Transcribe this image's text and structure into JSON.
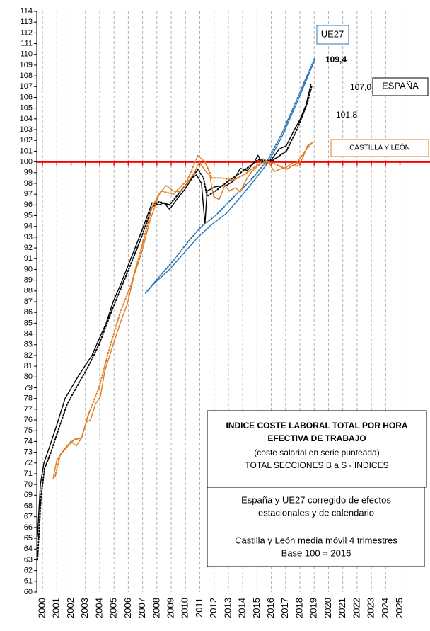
{
  "chart_data": {
    "type": "line",
    "xlim": [
      1999.6,
      2027.1
    ],
    "xticks": [
      2000,
      2001,
      2002,
      2003,
      2004,
      2005,
      2006,
      2007,
      2008,
      2009,
      2010,
      2011,
      2012,
      2013,
      2014,
      2015,
      2016,
      2017,
      2018,
      2019,
      2020,
      2021,
      2022,
      2023,
      2024,
      2025
    ],
    "ylim": [
      60,
      114
    ],
    "yticks": [
      60,
      61,
      62,
      63,
      64,
      65,
      66,
      67,
      68,
      69,
      70,
      71,
      72,
      73,
      74,
      75,
      76,
      77,
      78,
      79,
      80,
      81,
      82,
      83,
      84,
      85,
      86,
      87,
      88,
      89,
      90,
      91,
      92,
      93,
      94,
      95,
      96,
      97,
      98,
      99,
      100,
      101,
      102,
      103,
      104,
      105,
      106,
      107,
      108,
      109,
      110,
      111,
      112,
      113,
      114
    ],
    "grid": true,
    "reference_line": {
      "value": 100,
      "color": "#ff0000"
    },
    "series": [
      {
        "color": "#000000",
        "style": "solid",
        "x": [
          1999.65,
          1999.85,
          2000.1,
          2000.49,
          2000.99,
          2001.58,
          2002.47,
          2002.96,
          2003.46,
          2003.95,
          2004.45,
          2004.94,
          2005.43,
          2006.18,
          2006.92,
          2007.66,
          2008.15,
          2008.5,
          2008.89,
          2009.39,
          2009.98,
          2010.47,
          2010.77,
          2011.12,
          2011.36,
          2011.51,
          2012.1,
          2012.85,
          2013.34,
          2013.83,
          2014.33,
          2014.72,
          2015.07,
          2015.32,
          2015.71,
          2016.06,
          2016.55,
          2017.05,
          2017.54,
          2018.03,
          2018.43,
          2018.77
        ],
        "values": [
          65.2,
          70,
          72,
          73.5,
          75.5,
          78,
          80,
          81,
          82,
          83.5,
          85,
          87,
          88.5,
          91,
          93.5,
          96.2,
          96,
          96.2,
          95.6,
          96.5,
          97.5,
          98.5,
          98.8,
          98,
          94.2,
          97.3,
          97.7,
          97.8,
          98.2,
          99.4,
          99.2,
          99.8,
          100.6,
          100,
          99.9,
          100.3,
          101.2,
          101.5,
          102.8,
          104,
          105.3,
          107.2
        ]
      },
      {
        "color": "#000000",
        "style": "dotted",
        "x": [
          1999.65,
          1999.9,
          2000.15,
          2000.59,
          2001.09,
          2001.73,
          2002.57,
          2003.21,
          2003.95,
          2004.94,
          2006.18,
          2006.92,
          2007.66,
          2008.15,
          2008.89,
          2009.98,
          2010.87,
          2011.26,
          2011.51,
          2012.1,
          2013.09,
          2014.08,
          2015.07,
          2016.06,
          2017.05,
          2017.79,
          2018.53,
          2018.82
        ],
        "values": [
          63,
          69,
          71.5,
          73,
          75,
          77.5,
          79.5,
          81,
          83,
          86.5,
          90.5,
          93,
          95.8,
          96.3,
          96,
          97.8,
          99.3,
          98.5,
          96.8,
          97.3,
          98.3,
          99.2,
          100.2,
          100.1,
          101,
          103,
          105.5,
          107
        ]
      },
      {
        "color": "#2e75b6",
        "style": "solid",
        "x": [
          2007.31,
          2007.9,
          2008.89,
          2009.88,
          2010.87,
          2011.86,
          2012.85,
          2013.83,
          2014.82,
          2015.81,
          2016.8,
          2017.79,
          2019.02
        ],
        "values": [
          88,
          88.8,
          90,
          91.5,
          93,
          94.2,
          95.2,
          96.7,
          98.3,
          100,
          102.5,
          105.5,
          109.4
        ]
      },
      {
        "color": "#2e75b6",
        "style": "dotted",
        "x": [
          2007.21,
          2008.15,
          2009.14,
          2010.13,
          2011.12,
          2012.1,
          2013.34,
          2014.57,
          2015.81,
          2016.8,
          2017.79,
          2019.02
        ],
        "values": [
          87.8,
          89.3,
          90.8,
          92.5,
          94,
          95,
          96.7,
          98.3,
          100.3,
          102.8,
          105.8,
          109.6
        ]
      },
      {
        "color": "#e07b22",
        "style": "solid",
        "x": [
          2000.74,
          2000.99,
          2001.48,
          2001.98,
          2002.37,
          2002.72,
          2003.06,
          2003.36,
          2003.71,
          2004.05,
          2004.35,
          2004.94,
          2005.43,
          2005.93,
          2006.42,
          2006.92,
          2007.51,
          2008.15,
          2008.65,
          2009.14,
          2009.63,
          2010.13,
          2010.62,
          2010.97,
          2011.36,
          2011.71,
          2011.96,
          2012.35,
          2012.75,
          2013.09,
          2013.49,
          2013.83,
          2014.23,
          2014.57,
          2014.97,
          2015.42,
          2015.81,
          2016.21,
          2016.55,
          2017.05,
          2017.44,
          2017.79,
          2018.18,
          2018.53,
          2018.87
        ],
        "values": [
          70.5,
          72.2,
          73.2,
          74,
          73.6,
          74.3,
          75.8,
          76,
          77.5,
          78.2,
          80.5,
          83,
          85,
          86.8,
          89.5,
          91.5,
          94.5,
          97,
          97.8,
          97.3,
          97.2,
          98,
          99,
          100,
          99.2,
          98.7,
          96.8,
          96.5,
          97.8,
          97.3,
          97.6,
          97.2,
          98.3,
          99,
          99.5,
          100.3,
          100,
          99.1,
          99.3,
          99.5,
          99.9,
          99.6,
          100.3,
          101.5,
          101.8
        ]
      },
      {
        "color": "#e07b22",
        "style": "dotted",
        "x": [
          2000.89,
          2001.24,
          2001.73,
          2002.22,
          2002.72,
          2003.21,
          2003.95,
          2004.69,
          2005.43,
          2006.18,
          2006.92,
          2007.66,
          2008.3,
          2009.14,
          2010.13,
          2010.87,
          2011.36,
          2011.86,
          2012.6,
          2013.34,
          2014.08,
          2014.82,
          2015.56,
          2016.3,
          2017.05,
          2017.79,
          2018.53,
          2018.87
        ],
        "values": [
          70.8,
          72.8,
          73.5,
          74.2,
          74.3,
          76.5,
          79,
          82.7,
          86,
          88.5,
          92,
          95.8,
          97.3,
          97,
          98.3,
          100.6,
          100,
          98.5,
          98.5,
          98.3,
          98.8,
          99.5,
          100,
          99.8,
          99.3,
          99.9,
          101.3,
          101.8
        ]
      }
    ],
    "annotations": [
      {
        "text": "UE27",
        "color": "#2e75b6"
      },
      {
        "text": "109,4",
        "color": "#2e75b6"
      },
      {
        "text": "107,0",
        "color": "#404040"
      },
      {
        "text": "ESPAÑA",
        "color": "#000000"
      },
      {
        "text": "101,8",
        "color": "#e07b22"
      },
      {
        "text": "CASTILLA Y LEÓN",
        "color": "#e07b22"
      }
    ],
    "title": [
      "INDICE COSTE LABORAL TOTAL POR HORA",
      "EFECTIVA DE TRABAJO"
    ],
    "subtitle": [
      "(coste salarial en serie punteada)",
      "TOTAL SECCIONES B a S - INDICES"
    ],
    "notes": [
      "España y UE27 corregido de efectos",
      "estacionales y de calendario",
      "Castilla y León media móvil 4 trimestres",
      "Base 100 = 2016"
    ]
  }
}
